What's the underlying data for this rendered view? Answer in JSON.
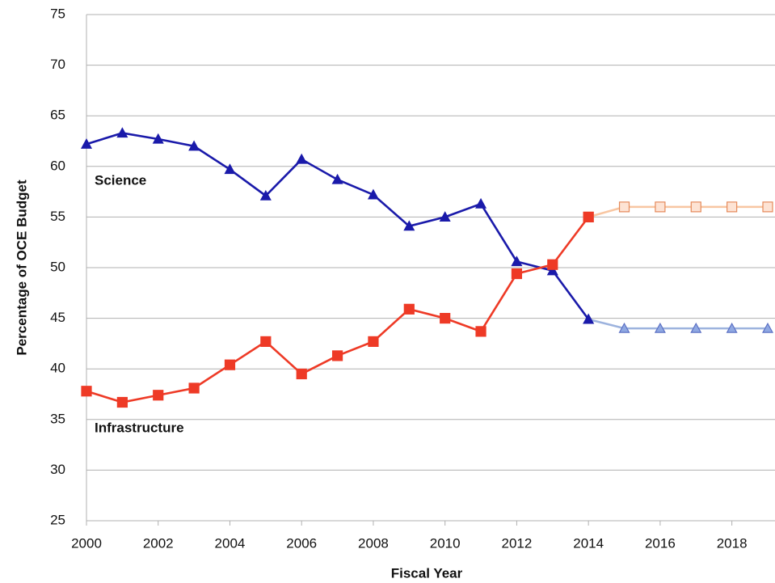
{
  "chart_data": {
    "type": "line",
    "y_label": "Percentage of OCE Budget",
    "x_label": "Fiscal Year",
    "x": [
      2000,
      2001,
      2002,
      2003,
      2004,
      2005,
      2006,
      2007,
      2008,
      2009,
      2010,
      2011,
      2012,
      2013,
      2014,
      2015,
      2016,
      2017,
      2018,
      2019
    ],
    "series": [
      {
        "color": "#9db3de",
        "marker": "triangle",
        "marker_fill": "#8fa8e2",
        "marker_edge": "#5b70c4",
        "values": [
          null,
          null,
          null,
          null,
          null,
          null,
          null,
          null,
          null,
          null,
          null,
          null,
          null,
          null,
          44.9,
          44,
          44,
          44,
          44,
          44
        ]
      },
      {
        "color": "#f8c6a2",
        "marker": "square",
        "marker_fill": "#fde3d4",
        "marker_edge": "#e58a5a",
        "values": [
          null,
          null,
          null,
          null,
          null,
          null,
          null,
          null,
          null,
          null,
          null,
          null,
          null,
          null,
          55.0,
          56,
          56,
          56,
          56,
          56
        ]
      },
      {
        "name": "Science",
        "color": "#1a1aaa",
        "marker": "triangle",
        "marker_fill": "#1a1aaa",
        "marker_edge": "#1a1aaa",
        "values": [
          62.2,
          63.3,
          62.7,
          62.0,
          59.7,
          57.1,
          60.7,
          58.7,
          57.2,
          54.1,
          55.0,
          56.3,
          50.6,
          49.7,
          44.9,
          null,
          null,
          null,
          null,
          null
        ]
      },
      {
        "name": "Infrastructure",
        "color": "#ee3a26",
        "marker": "square",
        "marker_fill": "#ee3a26",
        "marker_edge": "#ee3a26",
        "values": [
          37.8,
          36.7,
          37.4,
          38.1,
          40.4,
          42.7,
          39.5,
          41.3,
          42.7,
          45.9,
          45.0,
          43.7,
          49.4,
          50.3,
          55.0,
          null,
          null,
          null,
          null,
          null
        ]
      }
    ],
    "xlim": [
      2000,
      2019
    ],
    "xticks": [
      2000,
      2002,
      2004,
      2006,
      2008,
      2010,
      2012,
      2014,
      2016,
      2018
    ],
    "ylim": [
      25,
      75
    ],
    "yticks": [
      25,
      30,
      35,
      40,
      45,
      50,
      55,
      60,
      65,
      70,
      75
    ],
    "grid": true
  }
}
